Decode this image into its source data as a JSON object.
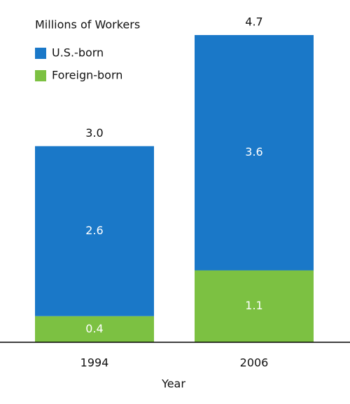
{
  "chart_data": {
    "type": "stacked_bar",
    "title": "Millions of Workers",
    "x_label": "Year",
    "categories": [
      "1994",
      "2006"
    ],
    "series": [
      {
        "name": "U.S.-born",
        "color": "#1a78c8",
        "values": [
          2.6,
          3.6
        ]
      },
      {
        "name": "Foreign-born",
        "color": "#7cc142",
        "values": [
          0.4,
          1.1
        ]
      }
    ],
    "totals": [
      3.0,
      4.7
    ],
    "totals_labels": [
      "3.0",
      "4.7"
    ],
    "legend": "upper left"
  }
}
